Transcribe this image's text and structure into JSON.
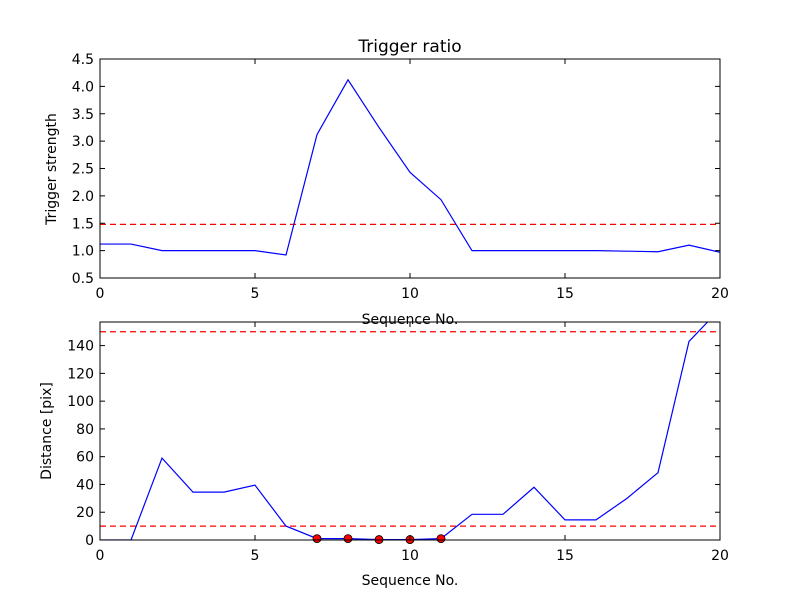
{
  "chart_data": [
    {
      "type": "line",
      "title": "Trigger ratio",
      "xlabel": "Sequence No.",
      "ylabel": "Trigger strength",
      "xlim": [
        0,
        20
      ],
      "ylim": [
        0.5,
        4.5
      ],
      "xticks": [
        0,
        5,
        10,
        15,
        20
      ],
      "xtick_labels": [
        "0",
        "5",
        "10",
        "15",
        "20"
      ],
      "yticks": [
        0.5,
        1.0,
        1.5,
        2.0,
        2.5,
        3.0,
        3.5,
        4.0,
        4.5
      ],
      "ytick_labels": [
        "0.5",
        "1.0",
        "1.5",
        "2.0",
        "2.5",
        "3.0",
        "3.5",
        "4.0",
        "4.5"
      ],
      "grid": false,
      "series": [
        {
          "x": [
            0,
            1,
            2,
            3,
            4,
            5,
            6,
            7,
            8,
            9,
            10,
            11,
            12,
            13,
            14,
            15,
            16,
            17,
            18,
            19,
            20
          ],
          "y": [
            1.12,
            1.12,
            1.0,
            1.0,
            1.0,
            1.0,
            0.92,
            3.12,
            4.12,
            3.25,
            2.43,
            1.93,
            1.0,
            1.0,
            1.0,
            1.0,
            1.0,
            0.99,
            0.98,
            1.1,
            0.97
          ],
          "color": "#0000ff"
        }
      ],
      "hlines": [
        {
          "y": 1.48,
          "color": "#ff0000",
          "style": "dashed"
        }
      ]
    },
    {
      "type": "line",
      "xlabel": "Sequence No.",
      "ylabel": "Distance [pix]",
      "xlim": [
        0,
        20
      ],
      "ylim": [
        0,
        157
      ],
      "xticks": [
        0,
        5,
        10,
        15,
        20
      ],
      "xtick_labels": [
        "0",
        "5",
        "10",
        "15",
        "20"
      ],
      "yticks": [
        0,
        20,
        40,
        60,
        80,
        100,
        120,
        140
      ],
      "ytick_labels": [
        "0",
        "20",
        "40",
        "60",
        "80",
        "100",
        "120",
        "140"
      ],
      "grid": false,
      "series": [
        {
          "x": [
            0,
            1,
            2,
            3,
            4,
            5,
            6,
            7,
            8,
            9,
            10,
            11,
            12,
            13,
            14,
            15,
            16,
            17,
            18,
            19,
            19.6
          ],
          "y": [
            0,
            0,
            59,
            34.5,
            34.5,
            39.5,
            10,
            1,
            1,
            0.3,
            0.3,
            1,
            18.5,
            18.5,
            38,
            14.5,
            14.5,
            30,
            48.5,
            143,
            157
          ],
          "color": "#0000ff"
        }
      ],
      "markers": {
        "x": [
          7,
          8,
          9,
          10,
          11
        ],
        "y": [
          1,
          1,
          0.3,
          0.3,
          1
        ],
        "color": "#ff0000"
      },
      "hlines": [
        {
          "y": 150,
          "color": "#ff0000",
          "style": "dashed"
        },
        {
          "y": 10,
          "color": "#ff0000",
          "style": "dashed"
        }
      ]
    }
  ]
}
